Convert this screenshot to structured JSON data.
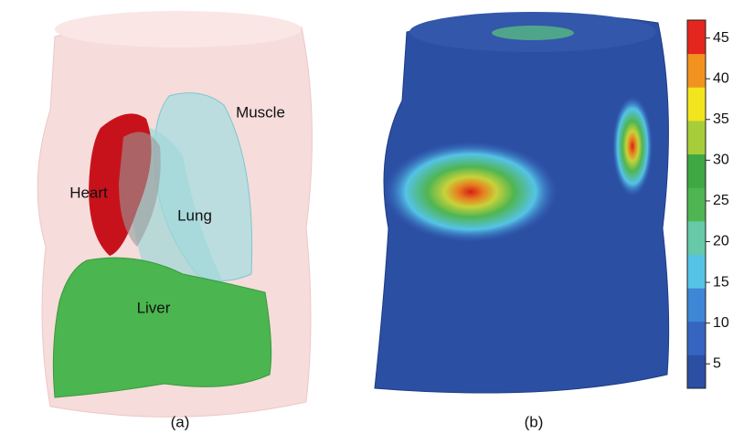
{
  "panels": [
    {
      "caption": "(a)",
      "labels": [
        "Muscle",
        "Heart",
        "Lung",
        "Liver"
      ]
    },
    {
      "caption": "(b)"
    }
  ],
  "colorbar": {
    "lim": [
      2,
      47.2
    ],
    "ticks": [
      5,
      10,
      15,
      20,
      25,
      30,
      35,
      40,
      45
    ],
    "colors": [
      "#2b4fa3",
      "#3565c0",
      "#3e86d6",
      "#55c3e6",
      "#66c9a8",
      "#4fb552",
      "#3fa842",
      "#a8cd3a",
      "#f2e51d",
      "#f29320",
      "#e4261e"
    ]
  }
}
